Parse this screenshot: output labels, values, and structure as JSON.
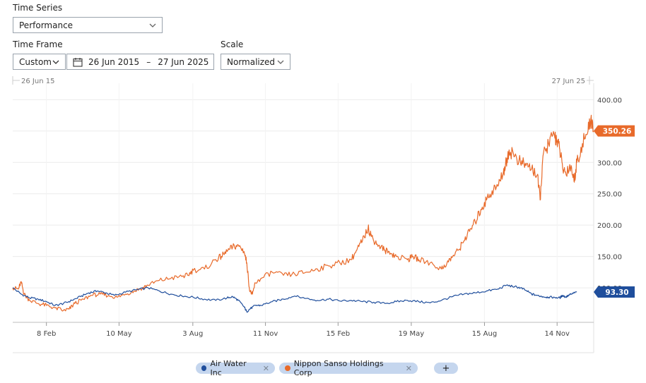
{
  "controls": {
    "time_series_label": "Time Series",
    "time_series_value": "Performance",
    "time_frame_label": "Time Frame",
    "time_frame_value": "Custom",
    "date_from": "26 Jun 2015",
    "date_sep": "–",
    "date_to": "27 Jun 2025",
    "scale_label": "Scale",
    "scale_value": "Normalized"
  },
  "range": {
    "start_label": "26 Jun 15",
    "end_label": "27 Jun 25"
  },
  "legend": {
    "items": [
      {
        "name": "Air Water Inc",
        "color": "#1f4e9c"
      },
      {
        "name": "Nippon Sanso Holdings Corp",
        "color": "#e86a2a"
      }
    ],
    "add_label": "+"
  },
  "chart_data": {
    "type": "line",
    "y_ticks": [
      "400.00",
      "350.00",
      "300.00",
      "250.00",
      "200.00",
      "150.00",
      "100.00"
    ],
    "ylim": [
      45,
      415
    ],
    "x_ticks": [
      "8 Feb",
      "10 May",
      "3 Aug",
      "11 Nov",
      "15 Feb",
      "19 May",
      "15 Aug",
      "14 Nov"
    ],
    "x_tick_positions": [
      0.058,
      0.183,
      0.31,
      0.435,
      0.56,
      0.686,
      0.812,
      0.937
    ],
    "series": [
      {
        "name": "Air Water Inc",
        "color": "#1f4e9c",
        "last_value": "93.30",
        "points": [
          [
            0,
            100
          ],
          [
            0.015,
            90
          ],
          [
            0.03,
            84
          ],
          [
            0.045,
            82
          ],
          [
            0.06,
            78
          ],
          [
            0.075,
            72
          ],
          [
            0.09,
            75
          ],
          [
            0.105,
            80
          ],
          [
            0.12,
            86
          ],
          [
            0.135,
            92
          ],
          [
            0.15,
            95
          ],
          [
            0.165,
            92
          ],
          [
            0.18,
            88
          ],
          [
            0.2,
            93
          ],
          [
            0.22,
            97
          ],
          [
            0.24,
            100
          ],
          [
            0.26,
            95
          ],
          [
            0.28,
            90
          ],
          [
            0.3,
            87
          ],
          [
            0.32,
            85
          ],
          [
            0.34,
            82
          ],
          [
            0.36,
            80
          ],
          [
            0.38,
            84
          ],
          [
            0.39,
            86
          ],
          [
            0.4,
            80
          ],
          [
            0.41,
            70
          ],
          [
            0.415,
            62
          ],
          [
            0.42,
            66
          ],
          [
            0.43,
            72
          ],
          [
            0.44,
            72
          ],
          [
            0.46,
            78
          ],
          [
            0.48,
            82
          ],
          [
            0.5,
            87
          ],
          [
            0.52,
            83
          ],
          [
            0.54,
            80
          ],
          [
            0.56,
            82
          ],
          [
            0.58,
            79
          ],
          [
            0.6,
            80
          ],
          [
            0.62,
            78
          ],
          [
            0.64,
            77
          ],
          [
            0.66,
            75
          ],
          [
            0.68,
            78
          ],
          [
            0.7,
            80
          ],
          [
            0.72,
            78
          ],
          [
            0.74,
            76
          ],
          [
            0.76,
            80
          ],
          [
            0.78,
            86
          ],
          [
            0.8,
            90
          ],
          [
            0.82,
            92
          ],
          [
            0.84,
            95
          ],
          [
            0.86,
            98
          ],
          [
            0.875,
            104
          ],
          [
            0.89,
            102
          ],
          [
            0.9,
            100
          ],
          [
            0.91,
            96
          ],
          [
            0.92,
            90
          ],
          [
            0.93,
            88
          ],
          [
            0.94,
            86
          ],
          [
            0.95,
            85
          ],
          [
            0.96,
            85
          ],
          [
            0.97,
            84
          ],
          [
            0.975,
            88
          ],
          [
            0.98,
            85
          ],
          [
            0.985,
            88
          ],
          [
            0.99,
            90
          ],
          [
            1.0,
            93.3
          ]
        ]
      },
      {
        "name": "Nippon Sanso Holdings Corp",
        "color": "#e86a2a",
        "last_value": "350.26",
        "points": [
          [
            0,
            100
          ],
          [
            0.01,
            98
          ],
          [
            0.015,
            110
          ],
          [
            0.02,
            90
          ],
          [
            0.03,
            80
          ],
          [
            0.045,
            75
          ],
          [
            0.06,
            72
          ],
          [
            0.075,
            68
          ],
          [
            0.09,
            64
          ],
          [
            0.1,
            66
          ],
          [
            0.11,
            75
          ],
          [
            0.125,
            82
          ],
          [
            0.14,
            88
          ],
          [
            0.155,
            90
          ],
          [
            0.17,
            88
          ],
          [
            0.185,
            85
          ],
          [
            0.2,
            90
          ],
          [
            0.215,
            95
          ],
          [
            0.23,
            100
          ],
          [
            0.24,
            104
          ],
          [
            0.26,
            112
          ],
          [
            0.28,
            115
          ],
          [
            0.3,
            118
          ],
          [
            0.31,
            120
          ],
          [
            0.32,
            128
          ],
          [
            0.34,
            130
          ],
          [
            0.36,
            145
          ],
          [
            0.37,
            150
          ],
          [
            0.38,
            158
          ],
          [
            0.39,
            165
          ],
          [
            0.4,
            168
          ],
          [
            0.41,
            158
          ],
          [
            0.415,
            140
          ],
          [
            0.42,
            95
          ],
          [
            0.425,
            90
          ],
          [
            0.43,
            108
          ],
          [
            0.44,
            115
          ],
          [
            0.46,
            125
          ],
          [
            0.48,
            120
          ],
          [
            0.5,
            122
          ],
          [
            0.52,
            125
          ],
          [
            0.54,
            130
          ],
          [
            0.56,
            135
          ],
          [
            0.58,
            140
          ],
          [
            0.6,
            145
          ],
          [
            0.61,
            160
          ],
          [
            0.62,
            175
          ],
          [
            0.63,
            195
          ],
          [
            0.635,
            185
          ],
          [
            0.64,
            175
          ],
          [
            0.65,
            168
          ],
          [
            0.66,
            160
          ],
          [
            0.67,
            155
          ],
          [
            0.68,
            150
          ],
          [
            0.7,
            145
          ],
          [
            0.71,
            150
          ],
          [
            0.72,
            145
          ],
          [
            0.74,
            140
          ],
          [
            0.76,
            130
          ],
          [
            0.77,
            140
          ],
          [
            0.78,
            150
          ],
          [
            0.79,
            160
          ],
          [
            0.8,
            175
          ],
          [
            0.81,
            190
          ],
          [
            0.82,
            205
          ],
          [
            0.83,
            225
          ],
          [
            0.84,
            240
          ],
          [
            0.85,
            255
          ],
          [
            0.86,
            262
          ],
          [
            0.87,
            285
          ],
          [
            0.875,
            300
          ],
          [
            0.88,
            320
          ],
          [
            0.89,
            310
          ],
          [
            0.9,
            300
          ],
          [
            0.91,
            295
          ],
          [
            0.92,
            290
          ],
          [
            0.93,
            280
          ],
          [
            0.935,
            240
          ],
          [
            0.94,
            310
          ],
          [
            0.95,
            330
          ],
          [
            0.96,
            345
          ],
          [
            0.965,
            335
          ],
          [
            0.97,
            320
          ],
          [
            0.975,
            290
          ],
          [
            0.98,
            285
          ],
          [
            0.99,
            295
          ],
          [
            0.995,
            270
          ],
          [
            1.0,
            300
          ],
          [
            1.01,
            330
          ],
          [
            1.02,
            350
          ],
          [
            1.025,
            370
          ],
          [
            1.03,
            350.26
          ]
        ]
      }
    ]
  }
}
